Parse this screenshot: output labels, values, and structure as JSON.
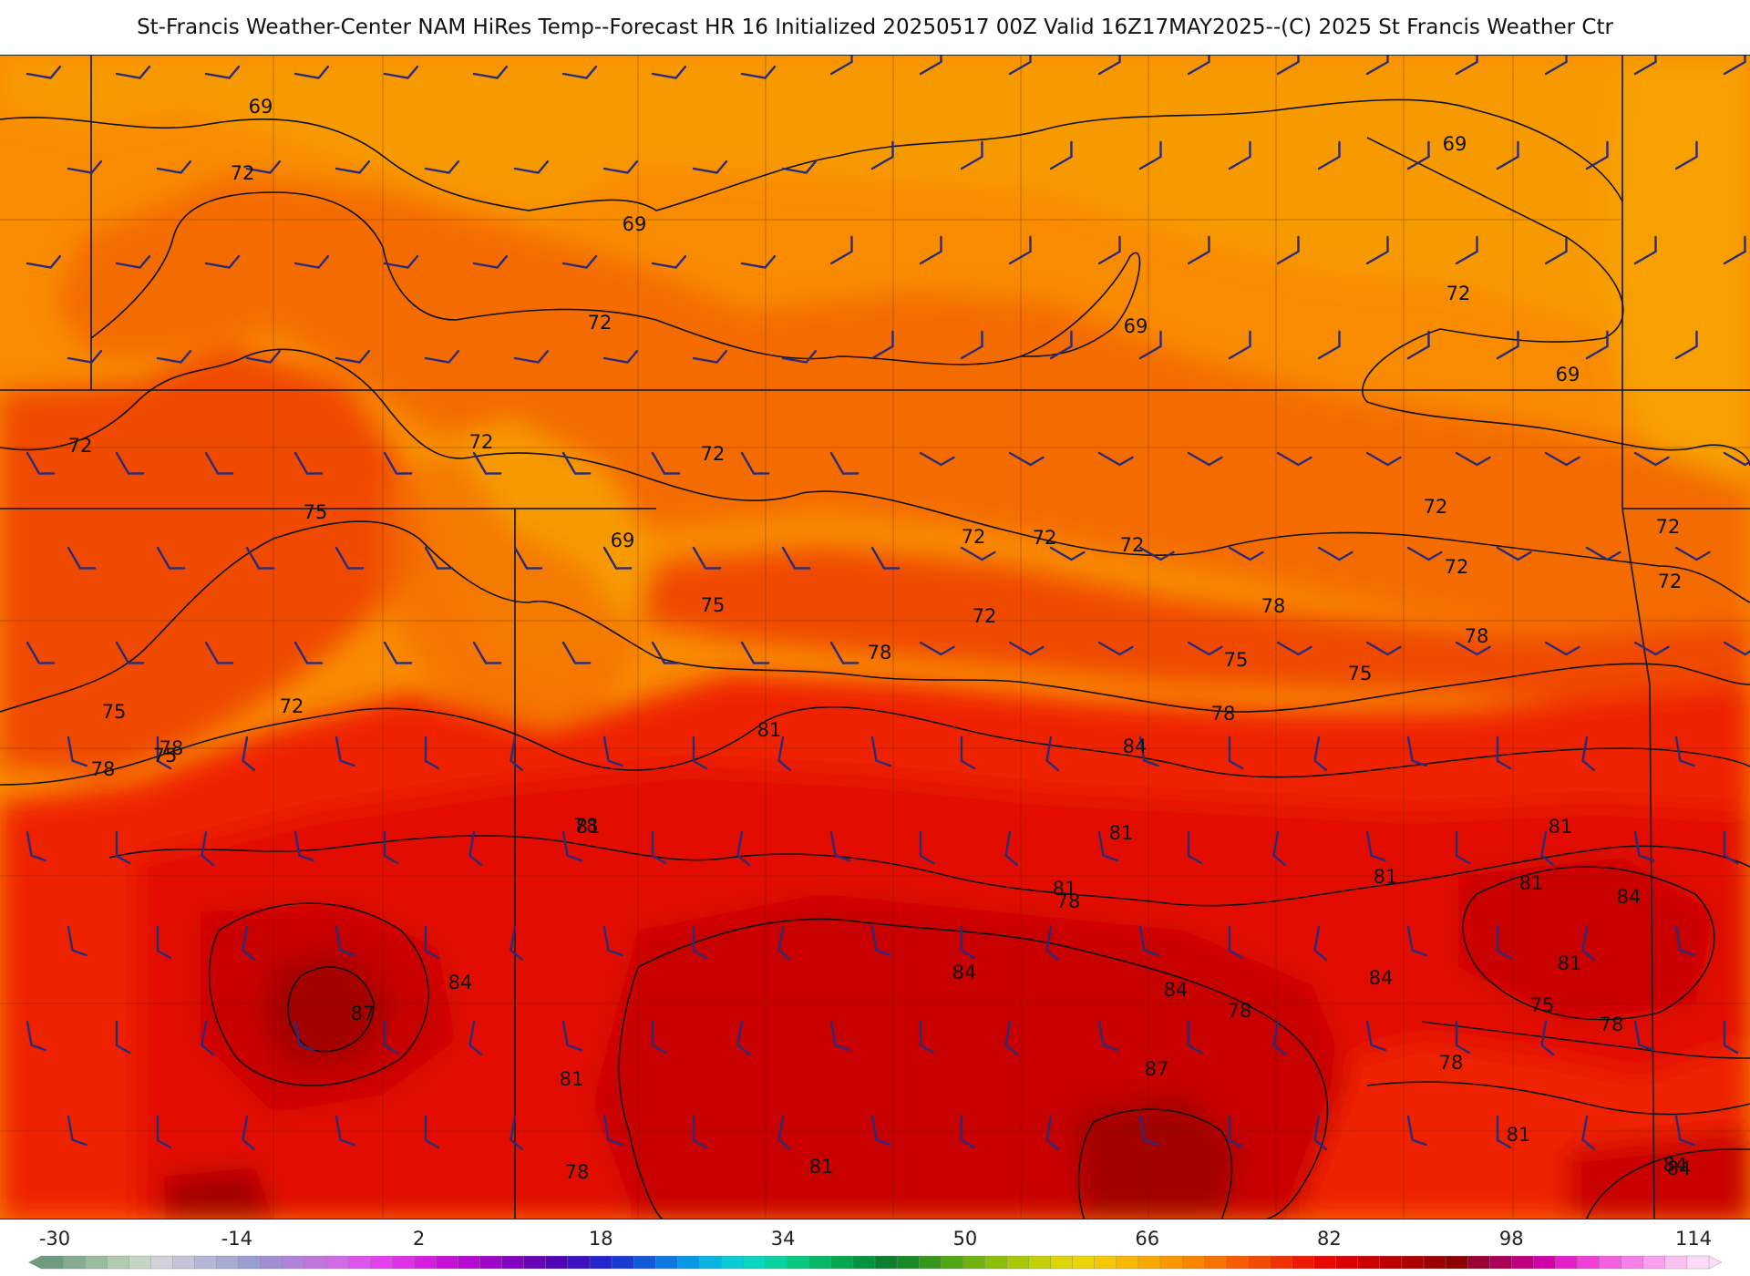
{
  "header": {
    "title": "St-Francis Weather-Center NAM HiRes Temp--Forecast HR 16 Initialized 20250517 00Z Valid 16Z17MAY2025--(C) 2025 St Francis Weather Ctr"
  },
  "map": {
    "field": "2 m temperature (°F)",
    "contour_interval": 3,
    "colors": {
      "t66": "#f79a00",
      "t69": "#f98b00",
      "t72": "#f46c00",
      "t75": "#f04a00",
      "t78": "#ef2000",
      "t81": "#e20800",
      "t84": "#c80000",
      "t87": "#a30000",
      "contour": "#111111",
      "boundary": "#333333",
      "wind_barb": "#2b2b7a"
    },
    "contour_labels": [
      "69",
      "72",
      "69",
      "72",
      "69",
      "69",
      "72",
      "72",
      "72",
      "72",
      "72",
      "72",
      "72",
      "69",
      "72",
      "72",
      "72",
      "75",
      "69",
      "72",
      "72",
      "75",
      "75",
      "75",
      "78",
      "78",
      "75",
      "78",
      "72",
      "78",
      "75",
      "78",
      "75",
      "78",
      "81",
      "81",
      "84",
      "81",
      "78",
      "78",
      "81",
      "81",
      "81",
      "78",
      "84",
      "81",
      "84",
      "84",
      "84",
      "87",
      "87",
      "81",
      "84",
      "78",
      "81",
      "78",
      "78",
      "81",
      "84",
      "81",
      "75",
      "84"
    ],
    "wind_barbs_icon": "wind-barb-icon"
  },
  "legend": {
    "tick_labels": [
      "-30",
      "-14",
      "2",
      "18",
      "34",
      "50",
      "66",
      "82",
      "98",
      "114"
    ],
    "colors": [
      "#6f9a80",
      "#86ab90",
      "#9bbb9f",
      "#b0cbb0",
      "#c5d6c5",
      "#d2d2dc",
      "#c5c5da",
      "#b4b8d6",
      "#a7abd2",
      "#9a9ecf",
      "#a18fd2",
      "#b083d8",
      "#c176de",
      "#d06ae6",
      "#dd55ec",
      "#e540ee",
      "#e030e6",
      "#d61ee0",
      "#c810d8",
      "#b50ad0",
      "#9e05c8",
      "#8304c0",
      "#6803b8",
      "#4f05b5",
      "#3b10c0",
      "#2424cc",
      "#1a3ad2",
      "#1258d8",
      "#0d78de",
      "#0b98e2",
      "#0ab4e0",
      "#09ccd4",
      "#08d6be",
      "#08d2a0",
      "#08c880",
      "#06b866",
      "#04a850",
      "#049440",
      "#0a8030",
      "#1a8826",
      "#34981c",
      "#50a614",
      "#6eb210",
      "#8cbe0c",
      "#a8c808",
      "#c4d006",
      "#dcd604",
      "#ecd404",
      "#f4c804",
      "#f8b804",
      "#f9a802",
      "#f99800",
      "#f98600",
      "#f77200",
      "#f55e00",
      "#f24a00",
      "#f03200",
      "#ee1a00",
      "#e80800",
      "#dc0000",
      "#cc0000",
      "#bc0000",
      "#ac0000",
      "#9c0000",
      "#8c0000",
      "#9a0030",
      "#ac0058",
      "#c00080",
      "#d400a8",
      "#e620c8",
      "#f040d8",
      "#f460e0",
      "#f680e6",
      "#f8a0ec",
      "#fac0f2",
      "#fcdcf8"
    ]
  }
}
